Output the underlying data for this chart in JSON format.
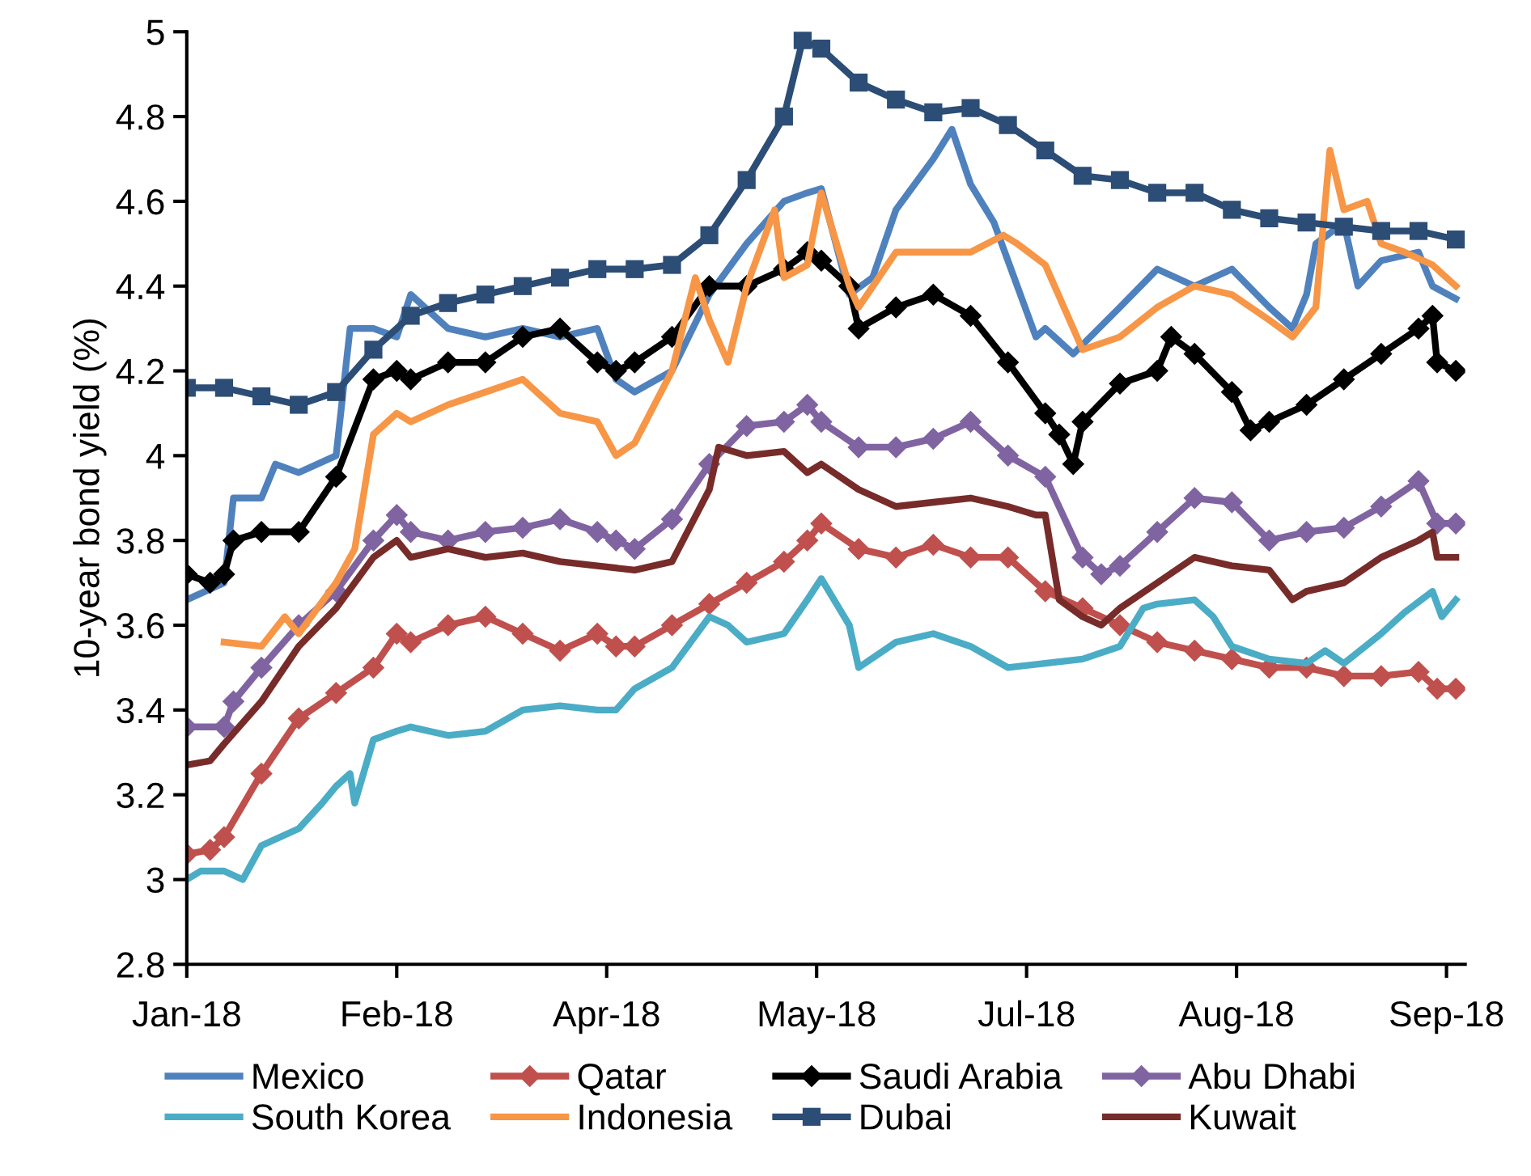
{
  "chart_data": {
    "type": "line",
    "ylabel": "10-year bond yield (%)",
    "xlim": [
      "2018-01-02",
      "2018-10-03"
    ],
    "xticks": [
      {
        "value": "2018-01-02",
        "label": "Jan-18"
      },
      {
        "value": "2018-02-16",
        "label": "Feb-18"
      },
      {
        "value": "2018-04-02",
        "label": "Apr-18"
      },
      {
        "value": "2018-05-17",
        "label": "May-18"
      },
      {
        "value": "2018-07-01",
        "label": "Jul-18"
      },
      {
        "value": "2018-08-15",
        "label": "Aug-18"
      },
      {
        "value": "2018-09-29",
        "label": "Sep-18"
      }
    ],
    "ylim": [
      2.8,
      5
    ],
    "yticks": [
      2.8,
      3,
      3.2,
      3.4,
      3.6,
      3.8,
      4,
      4.2,
      4.4,
      4.6,
      4.8,
      5
    ],
    "grid": false,
    "legend": "bottom",
    "series": [
      {
        "name": "Mexico",
        "color": "#4f81bd",
        "marker": "none",
        "x": [
          "2018-01-02",
          "2018-01-10",
          "2018-01-12",
          "2018-01-18",
          "2018-01-21",
          "2018-01-26",
          "2018-02-03",
          "2018-02-06",
          "2018-02-11",
          "2018-02-16",
          "2018-02-19",
          "2018-02-27",
          "2018-03-07",
          "2018-03-15",
          "2018-03-23",
          "2018-03-31",
          "2018-04-04",
          "2018-04-08",
          "2018-04-16",
          "2018-04-24",
          "2018-05-02",
          "2018-05-10",
          "2018-05-15",
          "2018-05-18",
          "2018-05-24",
          "2018-05-29",
          "2018-06-03",
          "2018-06-11",
          "2018-06-15",
          "2018-06-19",
          "2018-06-24",
          "2018-06-27",
          "2018-07-03",
          "2018-07-05",
          "2018-07-11",
          "2018-07-21",
          "2018-07-29",
          "2018-08-06",
          "2018-08-14",
          "2018-08-22",
          "2018-08-27",
          "2018-08-30",
          "2018-09-01",
          "2018-09-07",
          "2018-09-10",
          "2018-09-15",
          "2018-09-23",
          "2018-09-26",
          "2018-10-01"
        ],
        "values": [
          3.66,
          3.7,
          3.9,
          3.9,
          3.98,
          3.96,
          4.0,
          4.3,
          4.3,
          4.28,
          4.38,
          4.3,
          4.28,
          4.3,
          4.28,
          4.3,
          4.18,
          4.15,
          4.2,
          4.38,
          4.5,
          4.6,
          4.62,
          4.63,
          4.38,
          4.42,
          4.58,
          4.7,
          4.77,
          4.64,
          4.55,
          4.46,
          4.28,
          4.3,
          4.24,
          4.35,
          4.44,
          4.4,
          4.44,
          4.35,
          4.3,
          4.38,
          4.5,
          4.55,
          4.4,
          4.46,
          4.48,
          4.4,
          4.37
        ]
      },
      {
        "name": "Qatar",
        "color": "#c0504d",
        "marker": "diamond",
        "x": [
          "2018-01-02",
          "2018-01-07",
          "2018-01-10",
          "2018-01-18",
          "2018-01-26",
          "2018-02-03",
          "2018-02-11",
          "2018-02-16",
          "2018-02-19",
          "2018-02-27",
          "2018-03-07",
          "2018-03-15",
          "2018-03-23",
          "2018-03-31",
          "2018-04-04",
          "2018-04-08",
          "2018-04-16",
          "2018-04-24",
          "2018-05-02",
          "2018-05-10",
          "2018-05-15",
          "2018-05-18",
          "2018-05-26",
          "2018-06-03",
          "2018-06-11",
          "2018-06-19",
          "2018-06-27",
          "2018-07-05",
          "2018-07-13",
          "2018-07-21",
          "2018-07-29",
          "2018-08-06",
          "2018-08-14",
          "2018-08-22",
          "2018-08-30",
          "2018-09-07",
          "2018-09-15",
          "2018-09-23",
          "2018-09-27",
          "2018-10-01"
        ],
        "values": [
          3.06,
          3.07,
          3.1,
          3.25,
          3.38,
          3.44,
          3.5,
          3.58,
          3.56,
          3.6,
          3.62,
          3.58,
          3.54,
          3.58,
          3.55,
          3.55,
          3.6,
          3.65,
          3.7,
          3.75,
          3.8,
          3.84,
          3.78,
          3.76,
          3.79,
          3.76,
          3.76,
          3.68,
          3.64,
          3.6,
          3.56,
          3.54,
          3.52,
          3.5,
          3.5,
          3.48,
          3.48,
          3.49,
          3.45,
          3.45
        ]
      },
      {
        "name": "Saudi Arabia",
        "color": "#000000",
        "marker": "diamond",
        "x": [
          "2018-01-02",
          "2018-01-07",
          "2018-01-10",
          "2018-01-12",
          "2018-01-18",
          "2018-01-26",
          "2018-02-03",
          "2018-02-11",
          "2018-02-16",
          "2018-02-19",
          "2018-02-27",
          "2018-03-07",
          "2018-03-15",
          "2018-03-23",
          "2018-03-31",
          "2018-04-04",
          "2018-04-08",
          "2018-04-16",
          "2018-04-24",
          "2018-05-02",
          "2018-05-10",
          "2018-05-15",
          "2018-05-18",
          "2018-05-24",
          "2018-05-26",
          "2018-06-03",
          "2018-06-11",
          "2018-06-19",
          "2018-06-27",
          "2018-07-05",
          "2018-07-08",
          "2018-07-11",
          "2018-07-13",
          "2018-07-21",
          "2018-07-29",
          "2018-08-01",
          "2018-08-06",
          "2018-08-14",
          "2018-08-18",
          "2018-08-22",
          "2018-08-30",
          "2018-09-07",
          "2018-09-15",
          "2018-09-23",
          "2018-09-26",
          "2018-09-27",
          "2018-10-01"
        ],
        "values": [
          3.72,
          3.7,
          3.72,
          3.8,
          3.82,
          3.82,
          3.95,
          4.18,
          4.2,
          4.18,
          4.22,
          4.22,
          4.28,
          4.3,
          4.22,
          4.2,
          4.22,
          4.28,
          4.4,
          4.4,
          4.44,
          4.48,
          4.46,
          4.4,
          4.3,
          4.35,
          4.38,
          4.33,
          4.22,
          4.1,
          4.05,
          3.98,
          4.08,
          4.17,
          4.2,
          4.28,
          4.24,
          4.15,
          4.06,
          4.08,
          4.12,
          4.18,
          4.24,
          4.3,
          4.33,
          4.22,
          4.2
        ]
      },
      {
        "name": "Abu Dhabi",
        "color": "#8064a2",
        "marker": "diamond",
        "x": [
          "2018-01-02",
          "2018-01-10",
          "2018-01-12",
          "2018-01-18",
          "2018-01-26",
          "2018-02-03",
          "2018-02-11",
          "2018-02-16",
          "2018-02-19",
          "2018-02-27",
          "2018-03-07",
          "2018-03-15",
          "2018-03-23",
          "2018-03-31",
          "2018-04-04",
          "2018-04-08",
          "2018-04-16",
          "2018-04-24",
          "2018-05-02",
          "2018-05-10",
          "2018-05-15",
          "2018-05-18",
          "2018-05-26",
          "2018-06-03",
          "2018-06-11",
          "2018-06-19",
          "2018-06-27",
          "2018-07-05",
          "2018-07-13",
          "2018-07-17",
          "2018-07-21",
          "2018-07-29",
          "2018-08-06",
          "2018-08-14",
          "2018-08-22",
          "2018-08-30",
          "2018-09-07",
          "2018-09-15",
          "2018-09-23",
          "2018-09-27",
          "2018-10-01"
        ],
        "values": [
          3.36,
          3.36,
          3.42,
          3.5,
          3.6,
          3.68,
          3.8,
          3.86,
          3.82,
          3.8,
          3.82,
          3.83,
          3.85,
          3.82,
          3.8,
          3.78,
          3.85,
          3.98,
          4.07,
          4.08,
          4.12,
          4.08,
          4.02,
          4.02,
          4.04,
          4.08,
          4.0,
          3.95,
          3.76,
          3.72,
          3.74,
          3.82,
          3.9,
          3.89,
          3.8,
          3.82,
          3.83,
          3.88,
          3.94,
          3.84,
          3.84
        ]
      },
      {
        "name": "South Korea",
        "color": "#4bacc6",
        "marker": "none",
        "x": [
          "2018-01-02",
          "2018-01-05",
          "2018-01-10",
          "2018-01-14",
          "2018-01-18",
          "2018-01-26",
          "2018-01-31",
          "2018-02-03",
          "2018-02-06",
          "2018-02-07",
          "2018-02-11",
          "2018-02-16",
          "2018-02-19",
          "2018-02-27",
          "2018-03-07",
          "2018-03-15",
          "2018-03-23",
          "2018-03-31",
          "2018-04-04",
          "2018-04-08",
          "2018-04-16",
          "2018-04-24",
          "2018-04-28",
          "2018-05-02",
          "2018-05-10",
          "2018-05-15",
          "2018-05-18",
          "2018-05-24",
          "2018-05-26",
          "2018-06-03",
          "2018-06-11",
          "2018-06-19",
          "2018-06-27",
          "2018-07-05",
          "2018-07-13",
          "2018-07-21",
          "2018-07-26",
          "2018-07-29",
          "2018-08-06",
          "2018-08-10",
          "2018-08-14",
          "2018-08-22",
          "2018-08-30",
          "2018-09-03",
          "2018-09-07",
          "2018-09-15",
          "2018-09-20",
          "2018-09-26",
          "2018-09-28",
          "2018-10-01"
        ],
        "values": [
          3.0,
          3.02,
          3.02,
          3.0,
          3.08,
          3.12,
          3.18,
          3.22,
          3.25,
          3.18,
          3.33,
          3.35,
          3.36,
          3.34,
          3.35,
          3.4,
          3.41,
          3.4,
          3.4,
          3.45,
          3.5,
          3.62,
          3.6,
          3.56,
          3.58,
          3.66,
          3.71,
          3.6,
          3.5,
          3.56,
          3.58,
          3.55,
          3.5,
          3.51,
          3.52,
          3.55,
          3.64,
          3.65,
          3.66,
          3.62,
          3.55,
          3.52,
          3.51,
          3.54,
          3.51,
          3.58,
          3.63,
          3.68,
          3.62,
          3.66
        ]
      },
      {
        "name": "Indonesia",
        "color": "#f79646",
        "marker": "none",
        "x": [
          "2018-01-10",
          "2018-01-18",
          "2018-01-23",
          "2018-01-26",
          "2018-02-03",
          "2018-02-07",
          "2018-02-11",
          "2018-02-16",
          "2018-02-19",
          "2018-02-27",
          "2018-03-07",
          "2018-03-15",
          "2018-03-23",
          "2018-03-31",
          "2018-04-04",
          "2018-04-08",
          "2018-04-16",
          "2018-04-21",
          "2018-04-24",
          "2018-04-28",
          "2018-05-02",
          "2018-05-08",
          "2018-05-10",
          "2018-05-15",
          "2018-05-18",
          "2018-05-24",
          "2018-05-26",
          "2018-06-03",
          "2018-06-11",
          "2018-06-19",
          "2018-06-26",
          "2018-06-29",
          "2018-07-05",
          "2018-07-13",
          "2018-07-21",
          "2018-07-29",
          "2018-08-06",
          "2018-08-14",
          "2018-08-22",
          "2018-08-27",
          "2018-09-01",
          "2018-09-04",
          "2018-09-07",
          "2018-09-12",
          "2018-09-15",
          "2018-09-20",
          "2018-09-26",
          "2018-10-01"
        ],
        "values": [
          3.56,
          3.55,
          3.62,
          3.58,
          3.7,
          3.78,
          4.05,
          4.1,
          4.08,
          4.12,
          4.15,
          4.18,
          4.1,
          4.08,
          4.0,
          4.03,
          4.2,
          4.42,
          4.32,
          4.22,
          4.4,
          4.58,
          4.42,
          4.45,
          4.62,
          4.4,
          4.35,
          4.48,
          4.48,
          4.48,
          4.52,
          4.5,
          4.45,
          4.25,
          4.28,
          4.35,
          4.4,
          4.38,
          4.32,
          4.28,
          4.35,
          4.72,
          4.58,
          4.6,
          4.5,
          4.48,
          4.45,
          4.4
        ]
      },
      {
        "name": "Dubai",
        "color": "#2c4d75",
        "marker": "square",
        "x": [
          "2018-01-02",
          "2018-01-10",
          "2018-01-18",
          "2018-01-26",
          "2018-02-03",
          "2018-02-11",
          "2018-02-19",
          "2018-02-27",
          "2018-03-07",
          "2018-03-15",
          "2018-03-23",
          "2018-03-31",
          "2018-04-08",
          "2018-04-16",
          "2018-04-24",
          "2018-05-02",
          "2018-05-10",
          "2018-05-14",
          "2018-05-18",
          "2018-05-26",
          "2018-06-03",
          "2018-06-11",
          "2018-06-19",
          "2018-06-27",
          "2018-07-05",
          "2018-07-13",
          "2018-07-21",
          "2018-07-29",
          "2018-08-06",
          "2018-08-14",
          "2018-08-22",
          "2018-08-30",
          "2018-09-07",
          "2018-09-15",
          "2018-09-23",
          "2018-10-01"
        ],
        "values": [
          4.16,
          4.16,
          4.14,
          4.12,
          4.15,
          4.25,
          4.33,
          4.36,
          4.38,
          4.4,
          4.42,
          4.44,
          4.44,
          4.45,
          4.52,
          4.65,
          4.8,
          4.98,
          4.96,
          4.88,
          4.84,
          4.81,
          4.82,
          4.78,
          4.72,
          4.66,
          4.65,
          4.62,
          4.62,
          4.58,
          4.56,
          4.55,
          4.54,
          4.53,
          4.53,
          4.51
        ]
      },
      {
        "name": "Kuwait",
        "color": "#772c2a",
        "marker": "none",
        "x": [
          "2018-01-02",
          "2018-01-07",
          "2018-01-10",
          "2018-01-18",
          "2018-01-26",
          "2018-02-03",
          "2018-02-11",
          "2018-02-16",
          "2018-02-19",
          "2018-02-27",
          "2018-03-07",
          "2018-03-15",
          "2018-03-23",
          "2018-03-31",
          "2018-04-08",
          "2018-04-16",
          "2018-04-24",
          "2018-04-26",
          "2018-05-02",
          "2018-05-10",
          "2018-05-15",
          "2018-05-18",
          "2018-05-26",
          "2018-06-03",
          "2018-06-11",
          "2018-06-19",
          "2018-06-27",
          "2018-07-03",
          "2018-07-05",
          "2018-07-08",
          "2018-07-13",
          "2018-07-17",
          "2018-07-21",
          "2018-07-29",
          "2018-08-06",
          "2018-08-14",
          "2018-08-22",
          "2018-08-27",
          "2018-08-30",
          "2018-09-07",
          "2018-09-15",
          "2018-09-23",
          "2018-09-26",
          "2018-09-27",
          "2018-10-01"
        ],
        "values": [
          3.27,
          3.28,
          3.32,
          3.42,
          3.55,
          3.64,
          3.76,
          3.8,
          3.76,
          3.78,
          3.76,
          3.77,
          3.75,
          3.74,
          3.73,
          3.75,
          3.92,
          4.02,
          4.0,
          4.01,
          3.96,
          3.98,
          3.92,
          3.88,
          3.89,
          3.9,
          3.88,
          3.86,
          3.86,
          3.66,
          3.62,
          3.6,
          3.64,
          3.7,
          3.76,
          3.74,
          3.73,
          3.66,
          3.68,
          3.7,
          3.76,
          3.8,
          3.82,
          3.76,
          3.76
        ]
      }
    ]
  }
}
